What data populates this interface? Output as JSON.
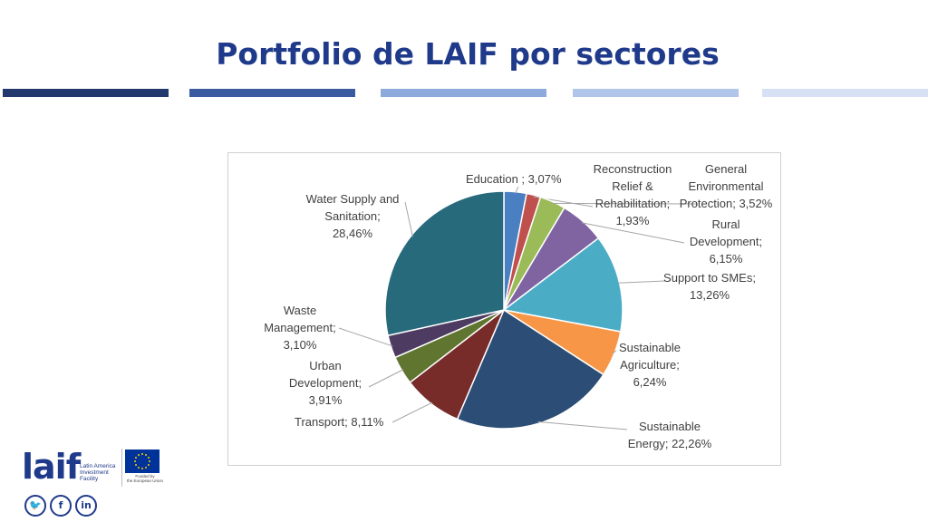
{
  "page": {
    "title": "Portfolio de LAIF por sectores"
  },
  "header_bars": {
    "colors": [
      "#23396e",
      "#3a5ba0",
      "#8ea9dc",
      "#b1c4ea",
      "#d6e1f5"
    ]
  },
  "chart_data": {
    "type": "pie",
    "title": "",
    "slices": [
      {
        "name": "Education",
        "value": 3.07,
        "label": "Education ; 3,07%",
        "color": "#4a7fc1"
      },
      {
        "name": "Reconstruction Relief & Rehabilitation",
        "value": 1.93,
        "label": "Reconstruction\nRelief &\nRehabilitation;\n1,93%",
        "color": "#c0504d"
      },
      {
        "name": "General Environmental Protection",
        "value": 3.52,
        "label": "General\nEnvironmental\nProtection; 3,52%",
        "color": "#9bbb59"
      },
      {
        "name": "Rural Development",
        "value": 6.15,
        "label": "Rural\nDevelopment;\n6,15%",
        "color": "#8064a2"
      },
      {
        "name": "Support to SMEs",
        "value": 13.26,
        "label": "Support to SMEs;\n13,26%",
        "color": "#4bacc6"
      },
      {
        "name": "Sustainable Agriculture",
        "value": 6.24,
        "label": "Sustainable\nAgriculture;\n6,24%",
        "color": "#f79646"
      },
      {
        "name": "Sustainable Energy",
        "value": 22.26,
        "label": "Sustainable\nEnergy; 22,26%",
        "color": "#2c4d75"
      },
      {
        "name": "Transport",
        "value": 8.11,
        "label": "Transport; 8,11%",
        "color": "#772c2a"
      },
      {
        "name": "Urban Development",
        "value": 3.91,
        "label": "Urban\nDevelopment;\n3,91%",
        "color": "#5f7530"
      },
      {
        "name": "Waste Management",
        "value": 3.1,
        "label": "Waste\nManagement;\n3,10%",
        "color": "#4d3b62"
      },
      {
        "name": "Water Supply and Sanitation",
        "value": 28.46,
        "label": "Water Supply and\nSanitation;\n28,46%",
        "color": "#276a7c"
      }
    ],
    "start_angle": "12 o'clock",
    "direction": "clockwise",
    "legend": "none"
  },
  "footer": {
    "logo_word": "laif",
    "logo_subtitle": "Latin America\nInvestment\nFacility",
    "eu_caption": "Funded by\nthe European Union",
    "social": [
      {
        "name": "twitter",
        "glyph": "🐦"
      },
      {
        "name": "facebook",
        "glyph": "f"
      },
      {
        "name": "linkedin",
        "glyph": "in"
      }
    ]
  }
}
